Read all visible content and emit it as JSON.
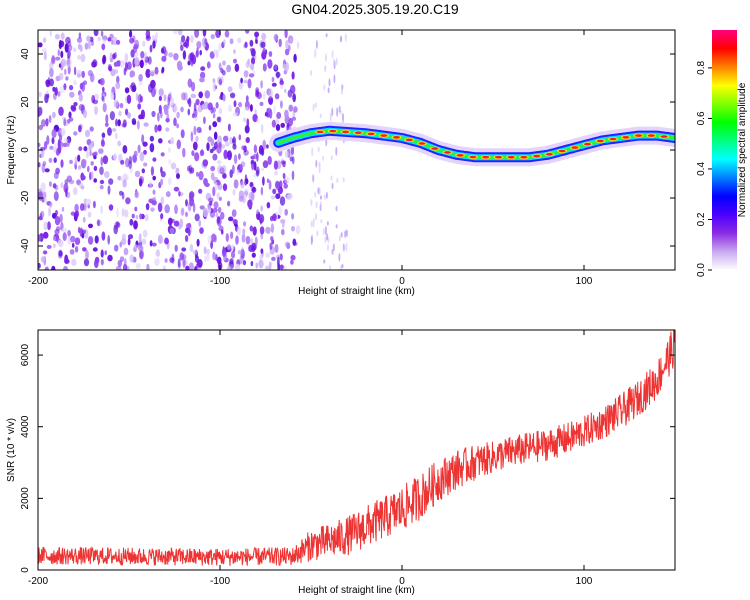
{
  "title": "GN04.2025.305.19.20.C19",
  "chart_data": [
    {
      "type": "heatmap",
      "title": "GN04.2025.305.19.20.C19",
      "xlabel": "Height of straight line (km)",
      "ylabel": "Frequency (Hz)",
      "xlim": [
        -200,
        150
      ],
      "ylim": [
        -50,
        50
      ],
      "xticks": [
        -200,
        -100,
        0,
        100
      ],
      "yticks": [
        -40,
        -20,
        0,
        20,
        40
      ],
      "noise_region_x": [
        -200,
        -57
      ],
      "noise_fragments_x": [
        -50,
        -30
      ],
      "ridge": {
        "x": [
          -68,
          -60,
          -50,
          -40,
          -20,
          0,
          10,
          20,
          30,
          40,
          60,
          70,
          80,
          90,
          100,
          110,
          120,
          130,
          140,
          150
        ],
        "y": [
          3,
          5,
          7,
          8,
          7,
          5,
          3,
          0,
          -2,
          -3,
          -3,
          -3,
          -2,
          0,
          2,
          4,
          5,
          6,
          6,
          5
        ]
      },
      "colorbar": {
        "label": "Normalized spectral amplitude",
        "range": [
          0,
          0.95
        ],
        "ticks": [
          0.0,
          0.2,
          0.4,
          0.6,
          0.8
        ],
        "tick_labels": [
          "0.0",
          "0.2",
          "0.4",
          "0.6",
          "0.8"
        ],
        "colors": [
          "#ffffff",
          "#c8a8f0",
          "#8a2be2",
          "#4b00ff",
          "#0000ff",
          "#0080ff",
          "#00ffff",
          "#00ff80",
          "#00ff00",
          "#80ff00",
          "#ffff00",
          "#ff8000",
          "#ff0000",
          "#ff0080"
        ]
      }
    },
    {
      "type": "line",
      "xlabel": "Height of straight line (km)",
      "ylabel": "SNR (10 * v/v)",
      "xlim": [
        -200,
        150
      ],
      "ylim": [
        0,
        6700
      ],
      "xticks": [
        -200,
        -100,
        0,
        100
      ],
      "yticks": [
        0,
        2000,
        4000,
        6000
      ],
      "series": [
        {
          "name": "SNR",
          "color": "#ee3333",
          "x": [
            -200,
            -150,
            -100,
            -60,
            -50,
            -40,
            -30,
            -20,
            -10,
            0,
            10,
            20,
            30,
            40,
            50,
            60,
            70,
            80,
            90,
            100,
            110,
            120,
            130,
            140,
            150
          ],
          "y": [
            400,
            380,
            360,
            380,
            700,
            800,
            950,
            1200,
            1450,
            1700,
            2050,
            2500,
            2800,
            3000,
            3150,
            3300,
            3400,
            3500,
            3650,
            3850,
            4100,
            4400,
            4800,
            5300,
            6300
          ],
          "spread": [
            250,
            250,
            250,
            260,
            450,
            500,
            550,
            600,
            600,
            650,
            650,
            600,
            550,
            500,
            450,
            450,
            450,
            450,
            450,
            450,
            450,
            500,
            500,
            550,
            600
          ]
        }
      ]
    }
  ]
}
